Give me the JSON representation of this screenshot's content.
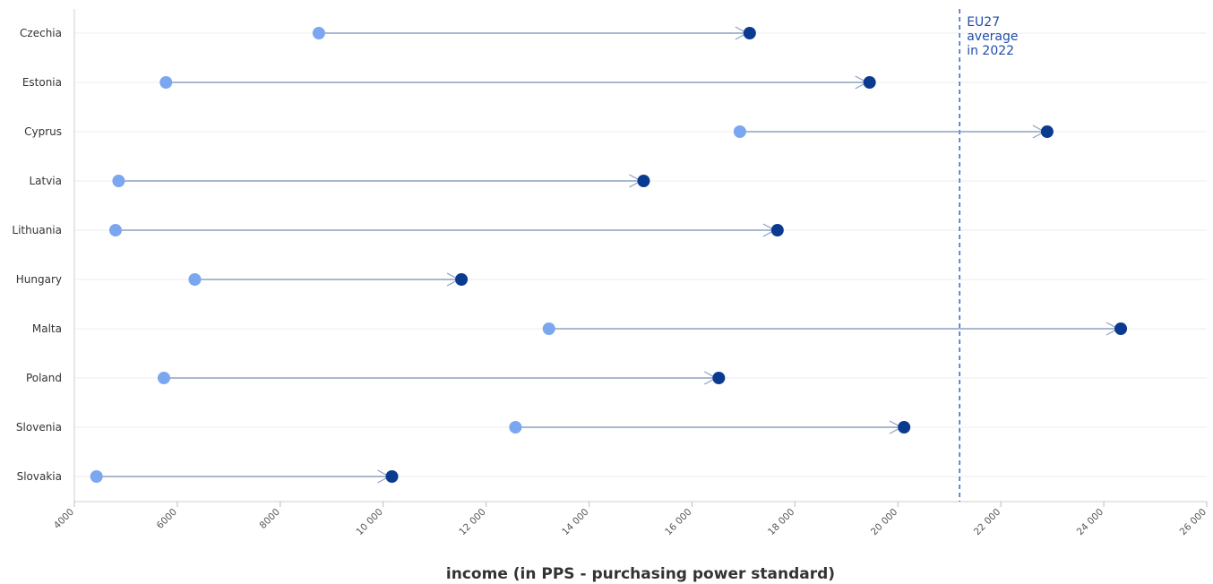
{
  "chart_data": {
    "type": "dumbbell",
    "categories": [
      "Czechia",
      "Estonia",
      "Cyprus",
      "Latvia",
      "Lithuania",
      "Hungary",
      "Malta",
      "Poland",
      "Slovenia",
      "Slovakia"
    ],
    "series": [
      {
        "values": [
          8750,
          5780,
          16930,
          4860,
          4800,
          6340,
          13220,
          5740,
          12570,
          4430
        ],
        "color": "#7ba7f0"
      },
      {
        "values": [
          17120,
          19450,
          22900,
          15060,
          17660,
          11520,
          24330,
          16520,
          20120,
          10170
        ],
        "color": "#0b3a91"
      }
    ],
    "xlim": [
      4000,
      26000
    ],
    "xticks": [
      4000,
      6000,
      8000,
      10000,
      12000,
      14000,
      16000,
      18000,
      20000,
      22000,
      24000,
      26000
    ],
    "xtick_labels": [
      "4000",
      "6000",
      "8000",
      "10 000",
      "12 000",
      "14 000",
      "16 000",
      "18 000",
      "20 000",
      "22 000",
      "24 000",
      "26 000"
    ],
    "xlabel": "income (in PPS - purchasing power standard)",
    "reference_line": {
      "value": 21200,
      "label_lines": [
        "EU27",
        "average",
        "in 2022"
      ],
      "color": "#3a6fd0",
      "style": "dashed"
    },
    "grid": true,
    "connector_color": "#8da0bf"
  }
}
